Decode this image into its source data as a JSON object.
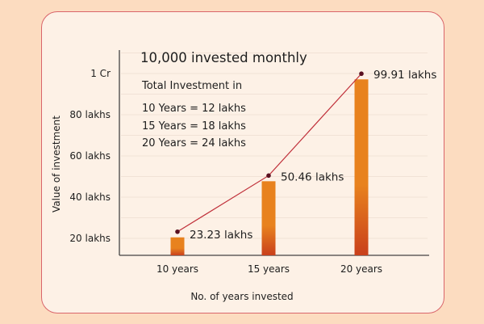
{
  "chart_data": {
    "type": "bar",
    "title": "10,000 invested monthly",
    "xlabel": "No. of years invested",
    "ylabel": "Value of investment",
    "categories": [
      "10 years",
      "15 years",
      "20 years"
    ],
    "values": [
      23.23,
      50.46,
      99.91
    ],
    "data_labels": [
      "23.23 lakhs",
      "50.46 lakhs",
      "99.91 lakhs"
    ],
    "line_overlay": true,
    "y_ticks": [
      {
        "value": 20,
        "label": "20 lakhs"
      },
      {
        "value": 40,
        "label": "40 lakhs"
      },
      {
        "value": 60,
        "label": "60 lakhs"
      },
      {
        "value": 80,
        "label": "80 lakhs"
      },
      {
        "value": 100,
        "label": "1 Cr"
      }
    ],
    "ylim": [
      10,
      100
    ],
    "grid": true,
    "annotation": {
      "heading": "Total Investment in",
      "lines": [
        "10 Years = 12 lakhs",
        "15 Years = 18 lakhs",
        "20 Years = 24 lakhs"
      ]
    },
    "colors": {
      "bar_top": "#e8821e",
      "bar_bottom": "#c9401c",
      "line": "#c0303a",
      "dot": "#5a1020"
    }
  }
}
